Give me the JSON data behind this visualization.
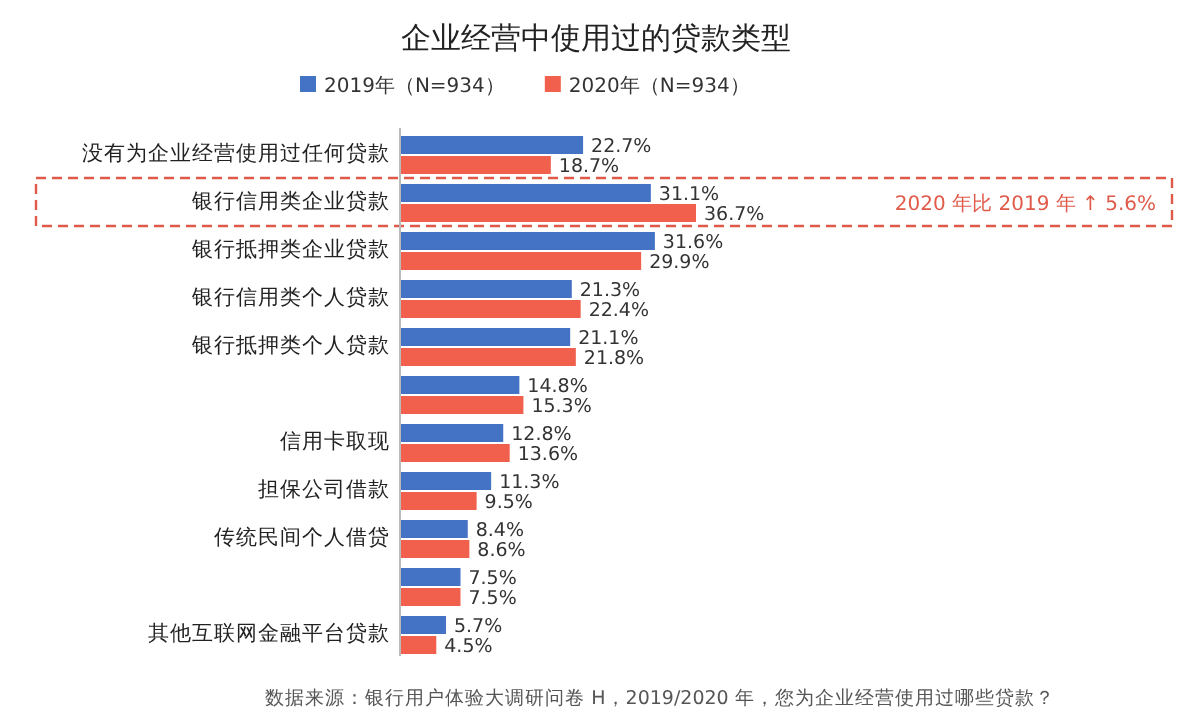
{
  "chart_data": {
    "type": "bar",
    "orientation": "horizontal",
    "title": "企业经营中使用过的贷款类型",
    "categories": [
      "没有为企业经营使用过任何贷款",
      "银行信用类企业贷款",
      "银行抵押类企业贷款",
      "银行信用类个人贷款",
      "银行抵押类个人贷款",
      null,
      "信用卡取现",
      "担保公司借款",
      "传统民间个人借贷",
      null,
      "其他互联网金融平台贷款"
    ],
    "series": [
      {
        "name": "2019年（N=934）",
        "color": "#4472c4",
        "values": [
          22.7,
          31.1,
          31.6,
          21.3,
          21.1,
          14.8,
          12.8,
          11.3,
          8.4,
          7.5,
          5.7
        ],
        "value_labels": [
          "22.7%",
          "31.1%",
          "31.6%",
          "21.3%",
          "21.1%",
          "14.8%",
          "12.8%",
          "11.3%",
          "8.4%",
          "7.5%",
          "5.7%"
        ]
      },
      {
        "name": "2020年（N=934）",
        "color": "#f0604d",
        "values": [
          18.7,
          36.7,
          29.9,
          22.4,
          21.8,
          15.3,
          13.6,
          9.5,
          8.6,
          7.5,
          4.5
        ],
        "value_labels": [
          "18.7%",
          "36.7%",
          "29.9%",
          "22.4%",
          "21.8%",
          "15.3%",
          "13.6%",
          "9.5%",
          "8.6%",
          "7.5%",
          "4.5%"
        ]
      }
    ],
    "legend": "top",
    "annotations": [
      "2020 年比 2019 年 ↑ 5.6%",
      "数据来源：银行用户体验大调研问卷 H，2019/2020 年，您为企业经营使用过哪些贷款？"
    ]
  }
}
